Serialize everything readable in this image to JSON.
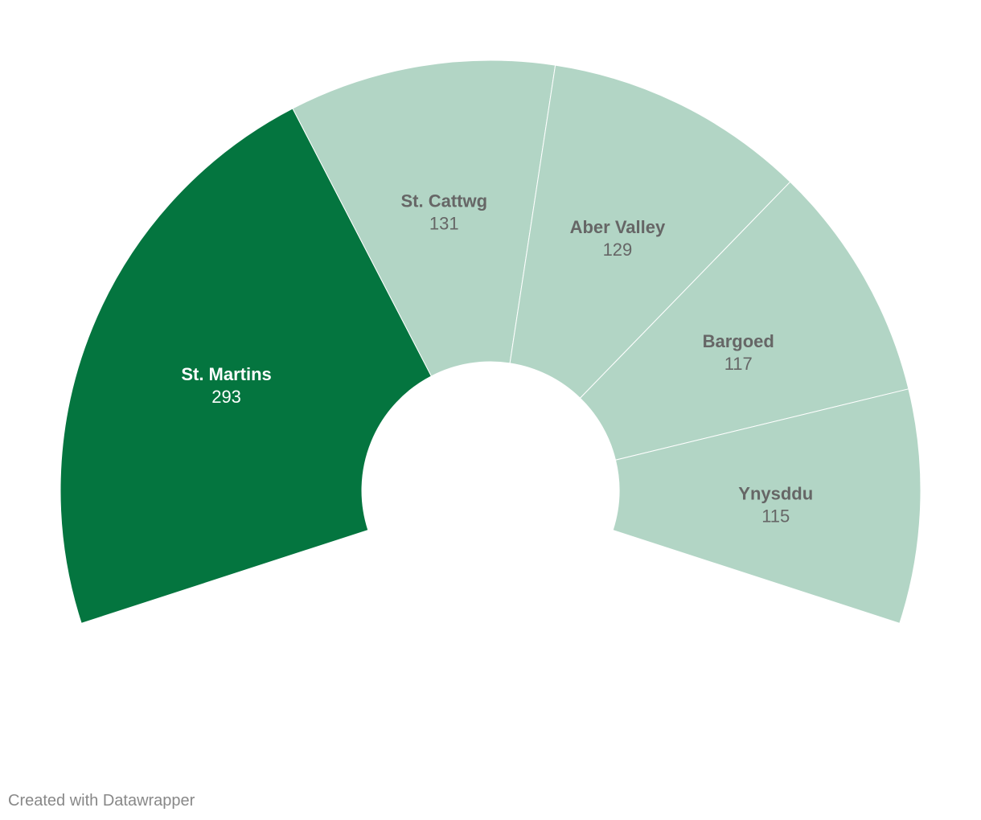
{
  "chart_data": {
    "type": "pie",
    "variant": "semi-donut",
    "title": "",
    "categories": [
      "St. Martins",
      "St. Cattwg",
      "Aber Valley",
      "Bargoed",
      "Ynysddu"
    ],
    "values": [
      293,
      131,
      129,
      117,
      115
    ],
    "colors": [
      "#04753f",
      "#b2d5c5",
      "#b2d5c5",
      "#b2d5c5",
      "#b2d5c5"
    ],
    "label_colors": [
      "#ffffff",
      "#666666",
      "#666666",
      "#666666",
      "#666666"
    ],
    "total_arc_degrees": 216
  },
  "footer": {
    "credit": "Created with Datawrapper"
  }
}
